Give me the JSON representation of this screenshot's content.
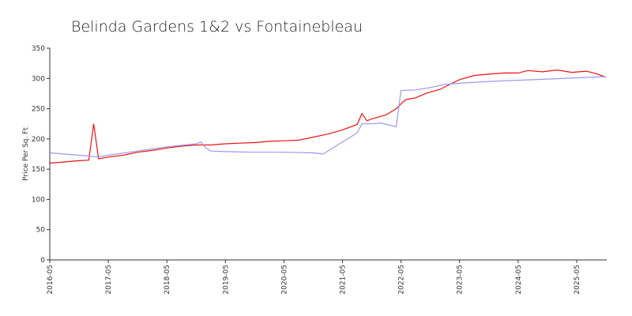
{
  "chart_data": {
    "type": "line",
    "title": "Belinda Gardens 1&2 vs Fontainebleau",
    "y_label": "Price Per Sq. Ft",
    "xlim": [
      "2016-05",
      "2025-11"
    ],
    "xticks": [
      "2016-05",
      "2017-05",
      "2018-05",
      "2019-05",
      "2020-05",
      "2021-05",
      "2022-05",
      "2023-05",
      "2024-05",
      "2025-05"
    ],
    "ylim": [
      0,
      350
    ],
    "yticks": [
      0,
      50,
      100,
      150,
      200,
      250,
      300,
      350
    ],
    "series": [
      {
        "color": "#ee1111",
        "x": [
          "2016-05",
          "2016-08",
          "2016-11",
          "2017-01",
          "2017-02",
          "2017-03",
          "2017-05",
          "2017-08",
          "2017-11",
          "2018-02",
          "2018-05",
          "2018-08",
          "2018-11",
          "2019-02",
          "2019-05",
          "2019-08",
          "2019-11",
          "2020-02",
          "2020-05",
          "2020-08",
          "2020-11",
          "2021-02",
          "2021-05",
          "2021-08",
          "2021-09",
          "2021-10",
          "2021-11",
          "2022-02",
          "2022-04",
          "2022-05",
          "2022-06",
          "2022-08",
          "2022-10",
          "2023-01",
          "2023-03",
          "2023-05",
          "2023-08",
          "2023-11",
          "2024-02",
          "2024-05",
          "2024-07",
          "2024-10",
          "2025-01",
          "2025-04",
          "2025-07",
          "2025-09",
          "2025-11"
        ],
        "values": [
          160,
          162,
          164,
          165,
          225,
          167,
          170,
          173,
          178,
          181,
          185,
          188,
          190,
          190,
          192,
          193,
          194,
          196,
          197,
          198,
          203,
          208,
          215,
          224,
          242,
          230,
          233,
          240,
          250,
          258,
          265,
          268,
          275,
          282,
          290,
          298,
          305,
          307,
          309,
          309,
          313,
          311,
          314,
          310,
          312,
          308,
          302
        ]
      },
      {
        "color": "#9999ee",
        "x": [
          "2016-05",
          "2016-11",
          "2017-03",
          "2017-05",
          "2017-11",
          "2018-05",
          "2018-11",
          "2018-12",
          "2019-01",
          "2019-02",
          "2019-05",
          "2019-11",
          "2020-05",
          "2020-11",
          "2021-01",
          "2021-08",
          "2021-09",
          "2021-11",
          "2022-01",
          "2022-04",
          "2022-05",
          "2022-08",
          "2022-11",
          "2023-02",
          "2023-05",
          "2023-11",
          "2024-05",
          "2024-11",
          "2025-05",
          "2025-11"
        ],
        "values": [
          177,
          173,
          170,
          173,
          180,
          187,
          192,
          195,
          185,
          180,
          179,
          178,
          178,
          177,
          175,
          210,
          225,
          225,
          226,
          220,
          280,
          281,
          285,
          290,
          292,
          295,
          297,
          299,
          301,
          303
        ]
      }
    ]
  }
}
